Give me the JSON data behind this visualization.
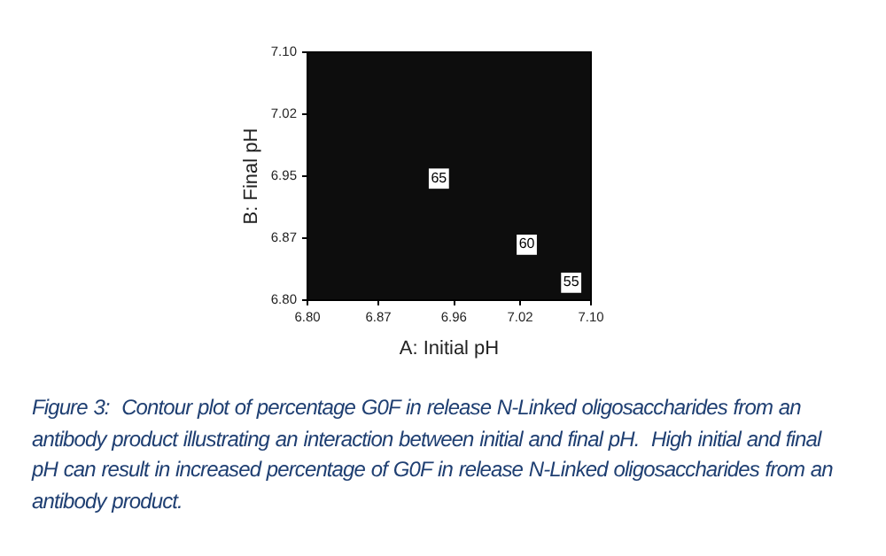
{
  "chart_data": {
    "type": "scatter",
    "xlabel": "A: Initial pH",
    "ylabel": "B: Final pH",
    "xlim": [
      6.8,
      7.1
    ],
    "ylim": [
      6.8,
      7.1
    ],
    "xticks": [
      "6.80",
      {
        "value": 6.875,
        "label": "6.87"
      },
      {
        "value": 6.955,
        "label": "6.96"
      },
      {
        "value": 7.025,
        "label": "7.02"
      },
      "7.10"
    ],
    "yticks": [
      "6.80",
      {
        "value": 6.875,
        "label": "6.87"
      },
      {
        "value": 6.95,
        "label": "6.95"
      },
      {
        "value": 7.025,
        "label": "7.02"
      },
      "7.10"
    ],
    "x": [
      6.94,
      7.033,
      7.08
    ],
    "values": [
      6.946,
      6.866,
      6.82
    ],
    "color": "#ffffff",
    "marker": "square",
    "annotations": [
      {
        "text": "65",
        "x": 6.94,
        "y": 6.946
      },
      {
        "text": "60",
        "x": 7.033,
        "y": 6.866
      },
      {
        "text": "55",
        "x": 7.08,
        "y": 6.82
      },
      "Figure 3:  Contour plot of percentage G0F in release N-Linked oligosaccharides from an antibody product illustrating an interaction between initial and final pH.  High initial and final pH can result in increased percentage of G0F in release N-Linked oligosaccharides from an antibody product."
    ]
  }
}
